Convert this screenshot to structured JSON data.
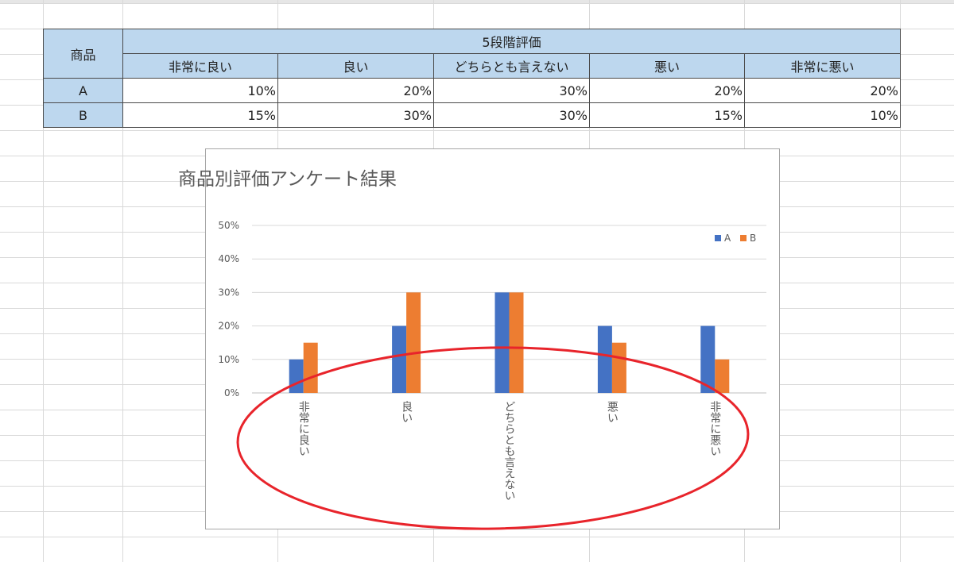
{
  "table": {
    "product_header": "商品",
    "rating_header": "5段階評価",
    "rating_columns": [
      "非常に良い",
      "良い",
      "どちらとも言えない",
      "悪い",
      "非常に悪い"
    ],
    "rows": [
      {
        "label": "A",
        "cells": [
          "10%",
          "20%",
          "30%",
          "20%",
          "20%"
        ]
      },
      {
        "label": "B",
        "cells": [
          "15%",
          "30%",
          "30%",
          "15%",
          "10%"
        ]
      }
    ]
  },
  "colors": {
    "header_fill": "#bdd7ee",
    "series_a": "#4472c4",
    "series_b": "#ed7d31",
    "annotation": "#e8242b"
  },
  "chart_data": {
    "type": "bar",
    "title": "商品別評価アンケート結果",
    "categories": [
      "非常に良い",
      "良い",
      "どちらとも言えない",
      "悪い",
      "非常に悪い"
    ],
    "series": [
      {
        "name": "A",
        "values": [
          10,
          20,
          30,
          20,
          20
        ]
      },
      {
        "name": "B",
        "values": [
          15,
          30,
          30,
          15,
          10
        ]
      }
    ],
    "ylim": [
      0,
      50
    ],
    "yticks": [
      "0%",
      "10%",
      "20%",
      "30%",
      "40%",
      "50%"
    ],
    "xlabel": "",
    "ylabel": "",
    "grid": true,
    "legend": "top-right",
    "category_label_orientation": "vertical"
  }
}
